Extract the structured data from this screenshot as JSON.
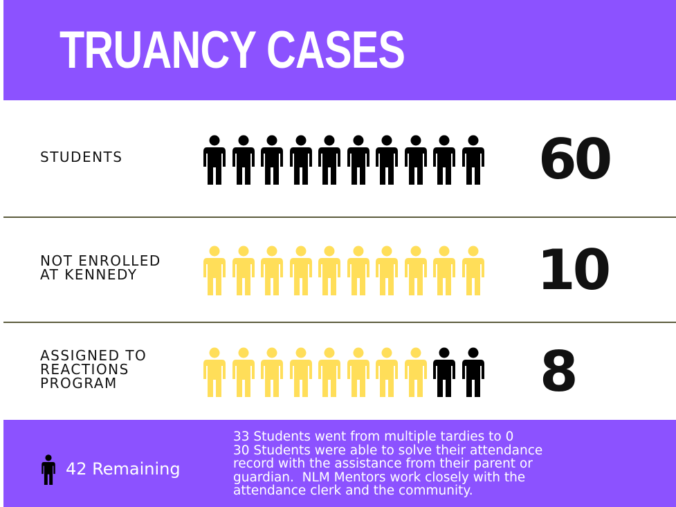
{
  "header": {
    "title": "TRUANCY CASES"
  },
  "rows": [
    {
      "label": [
        "STUDENTS"
      ],
      "value": 60,
      "icon_colors": [
        "#000000",
        "#000000",
        "#000000",
        "#000000",
        "#000000",
        "#000000",
        "#000000",
        "#000000",
        "#000000",
        "#000000"
      ]
    },
    {
      "label": [
        "NOT ENROLLED",
        "AT KENNEDY"
      ],
      "value": 10,
      "icon_colors": [
        "#ffde59",
        "#ffde59",
        "#ffde59",
        "#ffde59",
        "#ffde59",
        "#ffde59",
        "#ffde59",
        "#ffde59",
        "#ffde59",
        "#ffde59"
      ]
    },
    {
      "label": [
        "ASSIGNED TO",
        "REACTIONS",
        "PROGRAM"
      ],
      "value": 8,
      "icon_colors": [
        "#ffde59",
        "#ffde59",
        "#ffde59",
        "#ffde59",
        "#ffde59",
        "#ffde59",
        "#ffde59",
        "#ffde59",
        "#000000",
        "#000000"
      ]
    }
  ],
  "footer": {
    "remaining": "42 Remaining",
    "note": [
      "33 Students went from multiple tardies to 0",
      "30 Students were able to solve their attendance",
      "record with the assistance from their parent or",
      "guardian.  NLM Mentors work closely with the",
      "attendance clerk and the community."
    ]
  }
}
